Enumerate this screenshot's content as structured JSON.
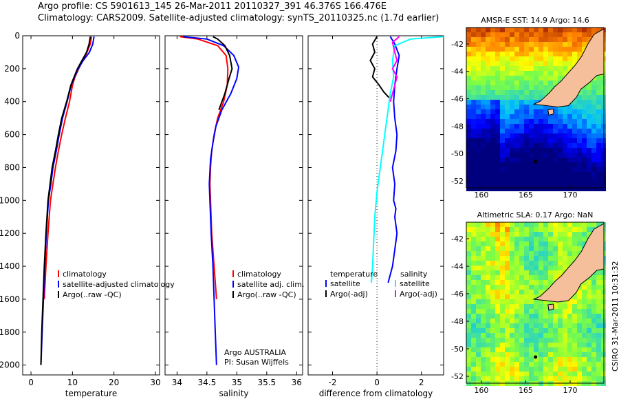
{
  "header": {
    "line1": "Argo profile: CS 5901613_145 26-Mar-2011 20110327_391 46.376S 166.476E",
    "line2": "Climatology: CARS2009. Satellite-adjusted climatology: synTS_20110325.nc (1.7d earlier)"
  },
  "side_stamp": "CSIRO 31-Mar-2011 10:31:32",
  "colors": {
    "climatology": "#ff0000",
    "satellite": "#0000ff",
    "argo": "#000000",
    "salinity_satellite": "#00ffff",
    "salinity_argo": "#ff00ff",
    "coast_land": "#f5bf9c"
  },
  "chart_data": [
    {
      "id": "temperature",
      "type": "line",
      "xlabel": "temperature",
      "xlim": [
        -2,
        31
      ],
      "xticks": [
        0,
        10,
        20,
        30
      ],
      "ylim": [
        2060,
        0
      ],
      "yticks": [
        0,
        200,
        400,
        600,
        800,
        1000,
        1200,
        1400,
        1600,
        1800,
        2000
      ],
      "legend": [
        "climatology",
        "satellite-adjusted climatology",
        "Argo(..raw -QC)"
      ],
      "series": [
        {
          "name": "climatology",
          "color": "#ff0000",
          "x": [
            14.6,
            14.3,
            13.5,
            12.5,
            11.5,
            10.6,
            10.0,
            9.3,
            8.3,
            7.4,
            6.6,
            5.9,
            5.3,
            4.7,
            4.1,
            3.6,
            3.2
          ],
          "y": [
            5,
            50,
            100,
            150,
            200,
            250,
            300,
            400,
            500,
            600,
            700,
            800,
            900,
            1000,
            1200,
            1400,
            1600
          ]
        },
        {
          "name": "satellite-adjusted climatology",
          "color": "#0000ff",
          "x": [
            15.2,
            14.9,
            14.1,
            12.6,
            11.4,
            10.5,
            9.7,
            8.7,
            7.6,
            6.8,
            6.1,
            5.3,
            4.8,
            4.2,
            3.7,
            3.3,
            3.0,
            2.7,
            2.4
          ],
          "y": [
            5,
            50,
            100,
            150,
            200,
            250,
            300,
            400,
            500,
            600,
            700,
            800,
            900,
            1000,
            1200,
            1400,
            1600,
            1800,
            2000
          ]
        },
        {
          "name": "Argo(..raw -QC)",
          "color": "#000000",
          "x": [
            14.3,
            14.0,
            13.4,
            12.3,
            11.2,
            10.4,
            9.6,
            8.6,
            7.4,
            6.6,
            5.9,
            5.1,
            4.6,
            4.1,
            3.6,
            3.2,
            2.9,
            2.6,
            2.4
          ],
          "y": [
            5,
            50,
            100,
            150,
            200,
            250,
            300,
            400,
            500,
            600,
            700,
            800,
            900,
            1000,
            1200,
            1400,
            1600,
            1800,
            2000
          ]
        }
      ]
    },
    {
      "id": "salinity",
      "type": "line",
      "xlabel": "salinity",
      "xlim": [
        33.8,
        36.1
      ],
      "xticks": [
        34,
        34.5,
        35,
        35.5,
        36
      ],
      "xticklabels": [
        "34",
        "34.5",
        "35",
        "35.5",
        "36"
      ],
      "ylim": [
        2060,
        0
      ],
      "legend": [
        "climatology",
        "satellite adj. clim.",
        "Argo(..raw -QC)"
      ],
      "annotation": [
        "Argo AUSTRALIA",
        "PI: Susan Wijffels"
      ],
      "series": [
        {
          "name": "climatology",
          "color": "#ff0000",
          "x": [
            34.05,
            34.35,
            34.68,
            34.82,
            34.85,
            34.84,
            34.78,
            34.68,
            34.62,
            34.58,
            34.56,
            34.55,
            34.56,
            34.58,
            34.62,
            34.66
          ],
          "y": [
            5,
            20,
            60,
            120,
            200,
            300,
            400,
            500,
            600,
            700,
            800,
            900,
            1000,
            1200,
            1400,
            1600
          ]
        },
        {
          "name": "satellite adj. clim.",
          "color": "#0000ff",
          "x": [
            34.1,
            34.5,
            34.78,
            34.95,
            35.03,
            35.0,
            34.9,
            34.75,
            34.65,
            34.6,
            34.56,
            34.54,
            34.55,
            34.57,
            34.6,
            34.62,
            34.64,
            34.66
          ],
          "y": [
            5,
            20,
            60,
            120,
            190,
            260,
            350,
            450,
            550,
            650,
            750,
            900,
            1000,
            1200,
            1400,
            1600,
            1800,
            2000
          ]
        },
        {
          "name": "Argo(..raw -QC)",
          "color": "#000000",
          "x": [
            34.6,
            34.68,
            34.8,
            34.88,
            34.92,
            34.87,
            34.8,
            34.7
          ],
          "y": [
            5,
            20,
            60,
            120,
            200,
            260,
            350,
            450
          ]
        }
      ]
    },
    {
      "id": "difference",
      "type": "line",
      "xlabel": "difference from climatology",
      "xlim": [
        -3.1,
        3.0
      ],
      "xticks": [
        -2,
        0,
        2
      ],
      "ylim": [
        2060,
        0
      ],
      "legend": {
        "temperature_header": "temperature",
        "salinity_header": "salinity",
        "temperature_items": [
          "satellite",
          "Argo(-adj)"
        ],
        "salinity_items": [
          "satellite",
          "Argo(-adj)"
        ]
      },
      "series": [
        {
          "name": "temperature satellite",
          "color": "#0000ff",
          "x": [
            0.6,
            0.8,
            1.0,
            0.9,
            0.8,
            0.75,
            0.8,
            0.9,
            0.85,
            0.7,
            0.8,
            0.75,
            0.85,
            0.8,
            0.9,
            0.8,
            0.7,
            0.6,
            0.5
          ],
          "y": [
            5,
            50,
            120,
            200,
            300,
            400,
            500,
            600,
            700,
            800,
            900,
            1000,
            1050,
            1100,
            1200,
            1300,
            1400,
            1450,
            1500
          ]
        },
        {
          "name": "temperature Argo(-adj)",
          "color": "#000000",
          "x": [
            0.0,
            -0.2,
            -0.1,
            -0.3,
            -0.1,
            -0.2,
            0.1,
            0.3,
            0.5,
            0.6
          ],
          "y": [
            5,
            50,
            100,
            150,
            200,
            250,
            300,
            340,
            370,
            380
          ]
        },
        {
          "name": "salinity satellite",
          "color": "#00ffff",
          "x": [
            3.0,
            1.5,
            0.8,
            0.7,
            0.75,
            0.6,
            0.5,
            0.4,
            0.3,
            0.2,
            0.1,
            0.0,
            -0.1,
            -0.15,
            -0.2,
            -0.25
          ],
          "y": [
            5,
            20,
            60,
            150,
            250,
            350,
            450,
            550,
            650,
            750,
            850,
            950,
            1100,
            1250,
            1400,
            1500
          ]
        },
        {
          "name": "salinity Argo(-adj)",
          "color": "#ff00ff",
          "x": [
            1.0,
            0.7,
            0.8,
            0.9,
            0.7,
            0.9,
            0.8,
            0.6
          ],
          "y": [
            5,
            40,
            100,
            150,
            200,
            250,
            300,
            400
          ]
        }
      ]
    },
    {
      "id": "sst_map",
      "type": "heatmap",
      "title": "AMSR-E SST: 14.9 Argo: 14.6",
      "xticks": [
        160,
        165,
        170
      ],
      "yticks": [
        -42,
        -44,
        -46,
        -48,
        -50,
        -52
      ],
      "xlim": [
        158.3,
        173.8
      ],
      "ylim": [
        -52.5,
        -40.8
      ]
    },
    {
      "id": "sla_map",
      "type": "heatmap",
      "title": "Altimetric SLA: 0.17 Argo: NaN",
      "xticks": [
        160,
        165,
        170
      ],
      "yticks": [
        -42,
        -44,
        -46,
        -48,
        -50,
        -52
      ],
      "xlim": [
        158.3,
        173.8
      ],
      "ylim": [
        -52.5,
        -40.8
      ]
    }
  ]
}
